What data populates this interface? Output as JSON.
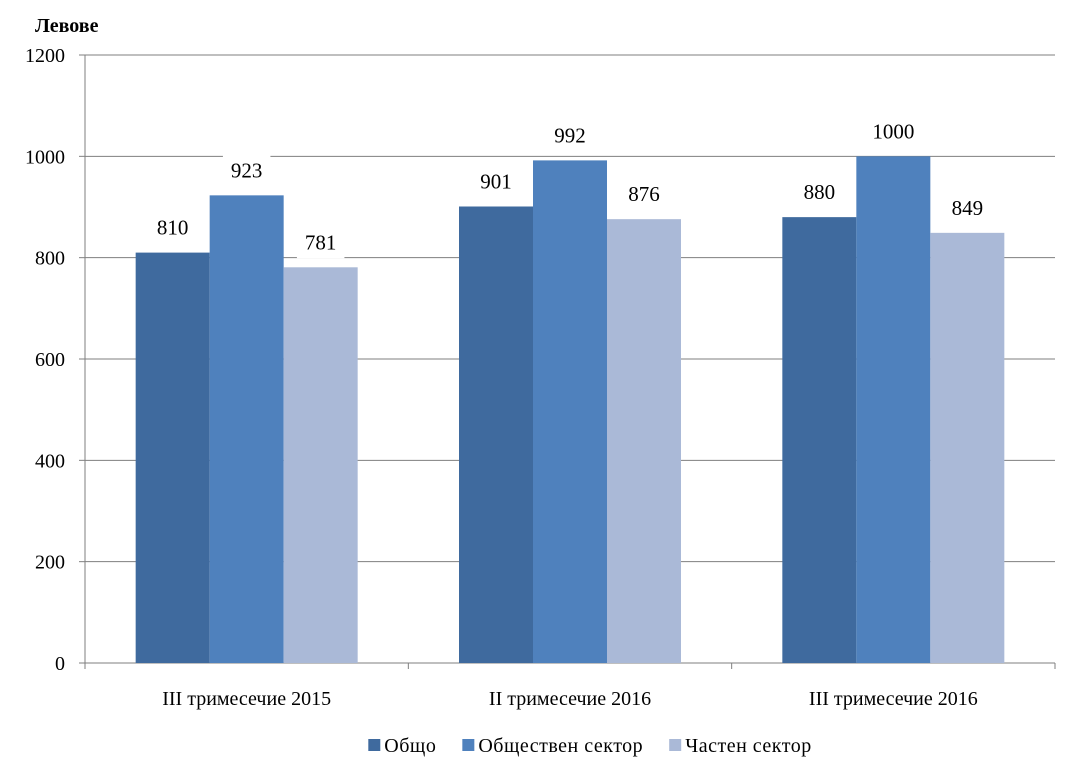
{
  "chart_data": {
    "type": "bar",
    "ylabel": "Левове",
    "xlabel": "",
    "ylim": [
      0,
      1200
    ],
    "yticks": [
      0,
      200,
      400,
      600,
      800,
      1000,
      1200
    ],
    "grid": true,
    "legend_position": "bottom",
    "categories": [
      "III тримесечие 2015",
      "II тримесечие 2016",
      "III тримесечие 2016"
    ],
    "series": [
      {
        "name": "Общо",
        "color": "#3F6A9E",
        "values": [
          810,
          901,
          880
        ]
      },
      {
        "name": "Обществен сектор",
        "color": "#4F81BD",
        "values": [
          923,
          992,
          1000
        ]
      },
      {
        "name": "Частен сектор",
        "color": "#AAB9D7",
        "values": [
          781,
          876,
          849
        ]
      }
    ]
  }
}
